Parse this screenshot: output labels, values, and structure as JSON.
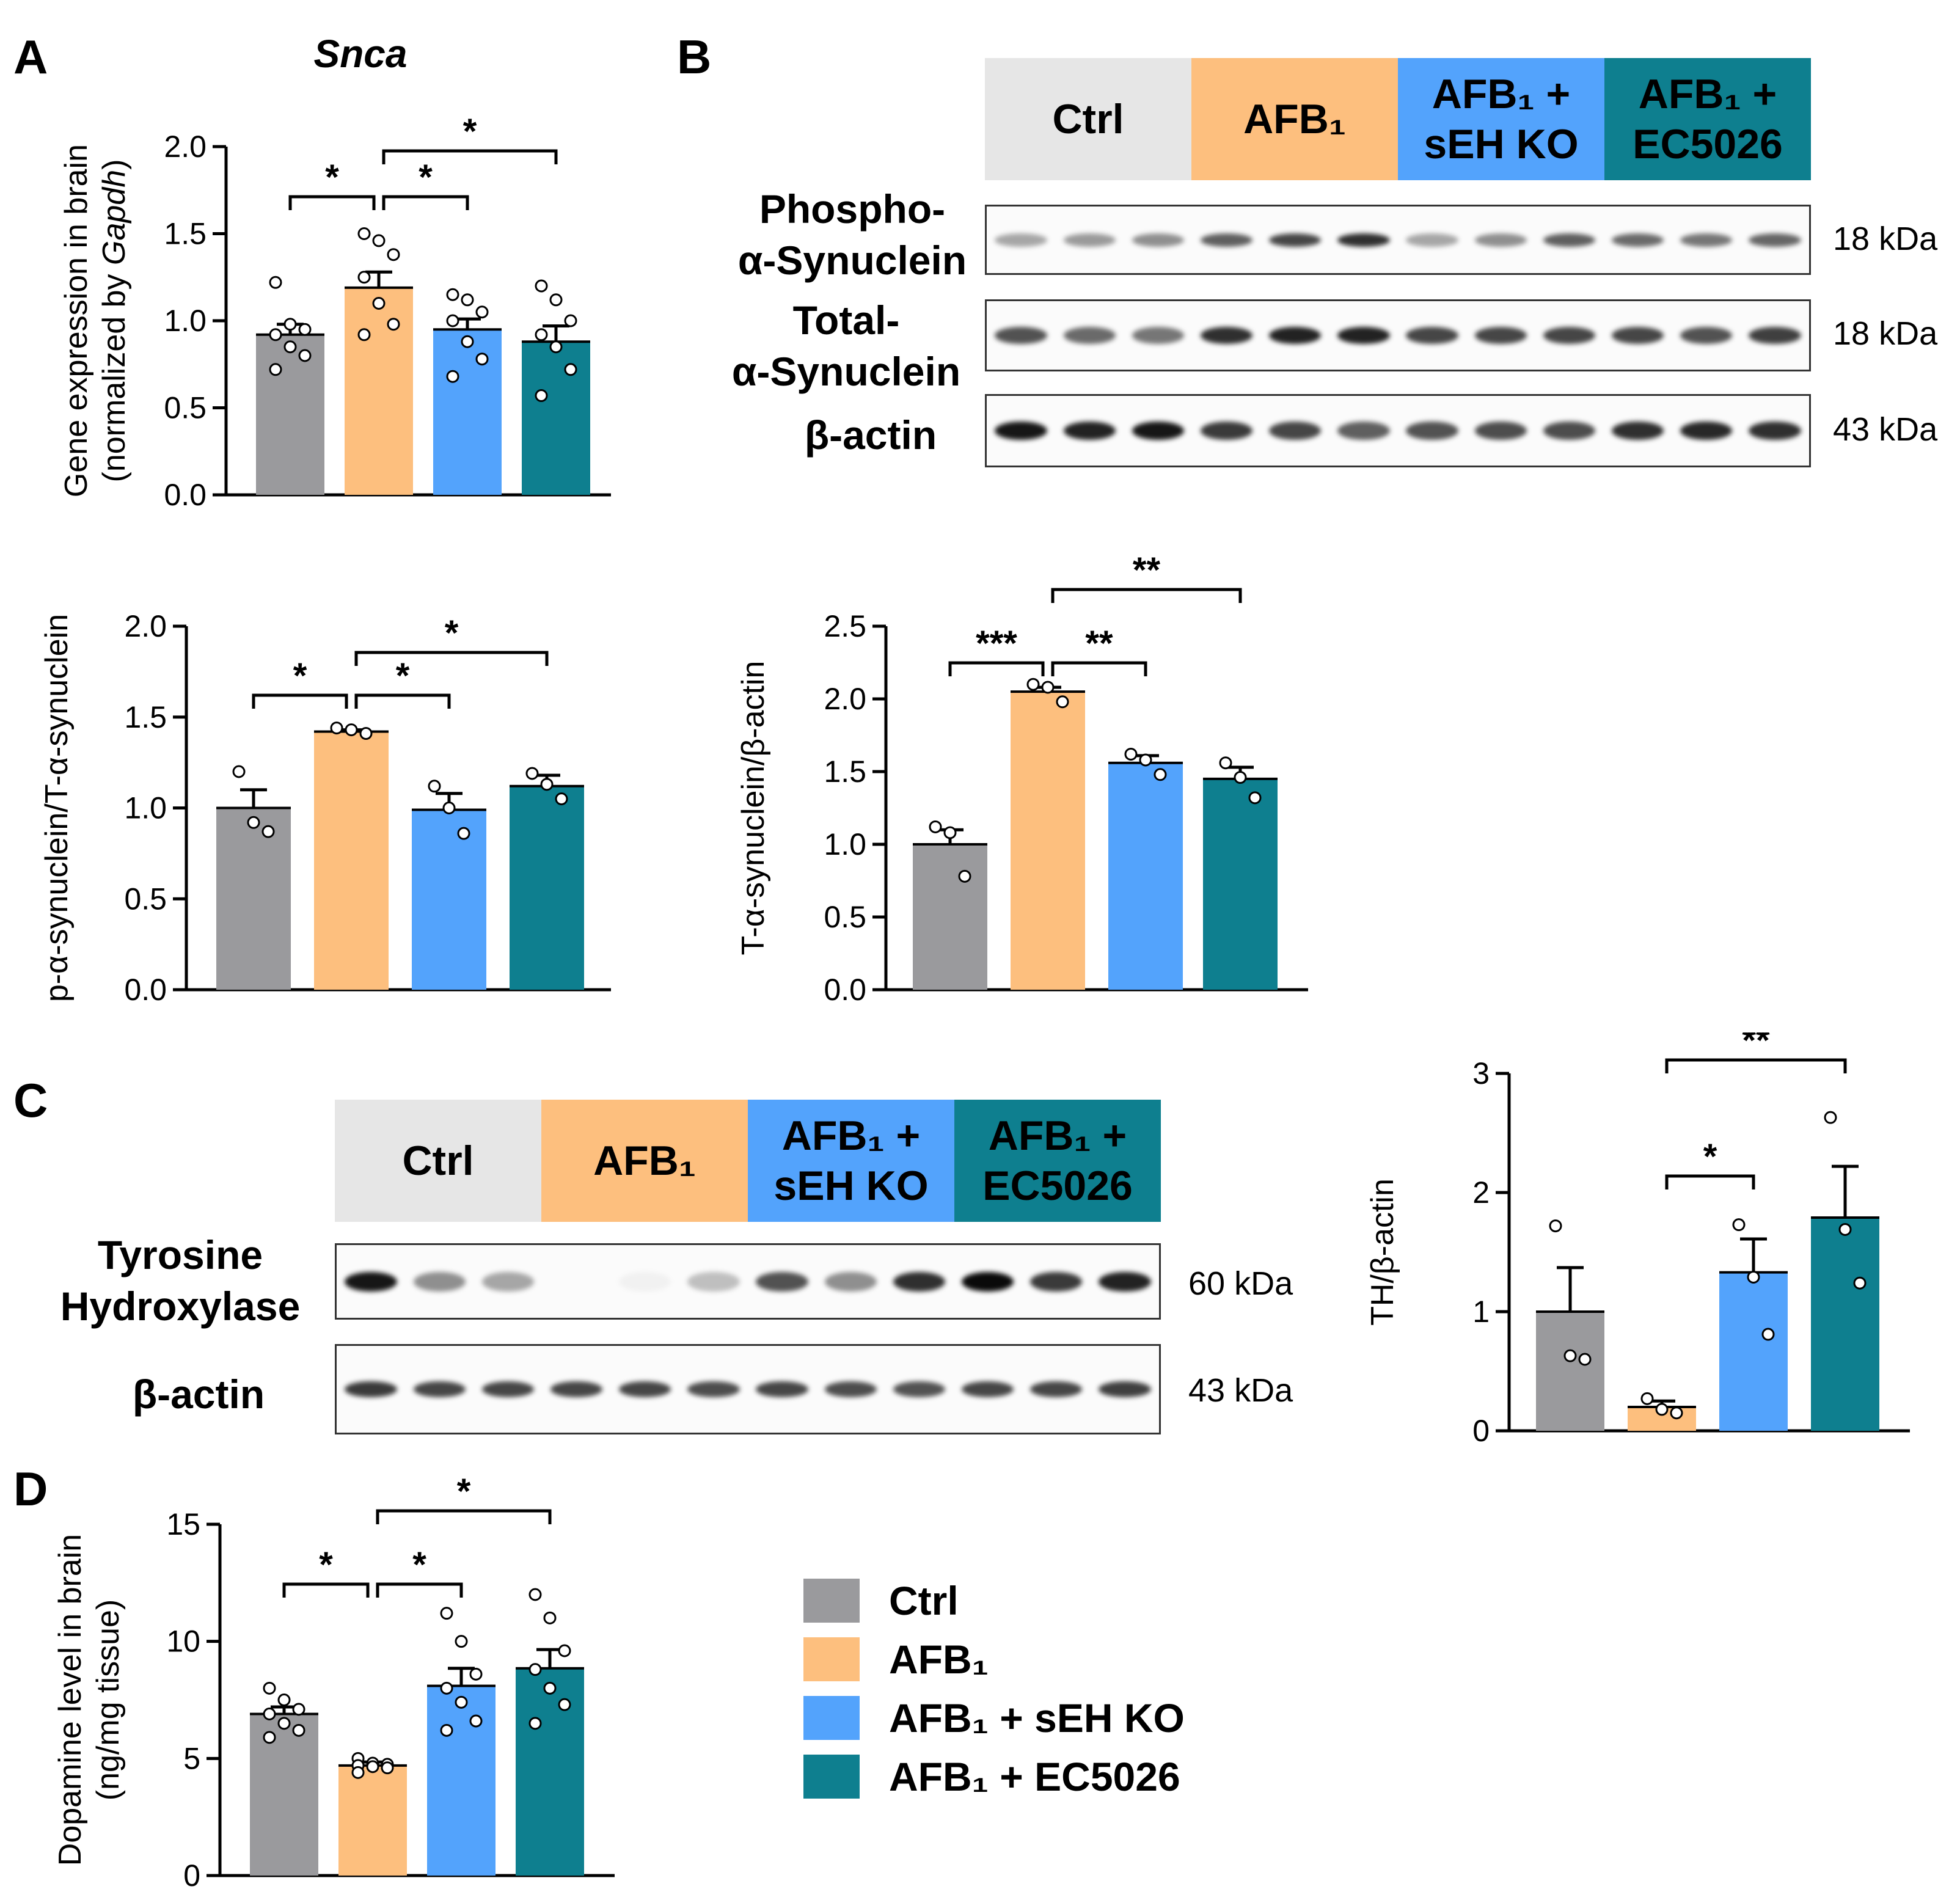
{
  "colors": {
    "ctrl": "#9a9a9d",
    "afb1": "#fdbf7e",
    "seh": "#53a3fc",
    "ec": "#0e7f8f",
    "ctrl_header": "#e6e6e6"
  },
  "groups": [
    "Ctrl",
    "AFB₁",
    "AFB₁ + sEH KO",
    "AFB₁ + EC5026"
  ],
  "headers": {
    "ctrl": "Ctrl",
    "afb1": "AFB₁",
    "seh_line1": "AFB₁ +",
    "seh_line2": "sEH KO",
    "ec_line1": "AFB₁ +",
    "ec_line2": "EC5026"
  },
  "panel_letters": {
    "a": "A",
    "b": "B",
    "c": "C",
    "d": "D"
  },
  "blot_b": {
    "rows": [
      {
        "label_line1": "Phospho-",
        "label_line2": "α-Synuclein",
        "kda": "18 kDa"
      },
      {
        "label_line1": "Total-",
        "label_line2": "α-Synuclein",
        "kda": "18 kDa"
      },
      {
        "label_line1": "β-actin",
        "label_line2": "",
        "kda": "43 kDa"
      }
    ]
  },
  "blot_c": {
    "rows": [
      {
        "label_line1": "Tyrosine",
        "label_line2": "Hydroxylase",
        "kda": "60 kDa"
      },
      {
        "label_line1": "β-actin",
        "label_line2": "",
        "kda": "43 kDa"
      }
    ]
  },
  "legend": [
    {
      "label": "Ctrl"
    },
    {
      "label": "AFB₁"
    },
    {
      "label": "AFB₁ + sEH KO"
    },
    {
      "label": "AFB₁ + EC5026"
    }
  ],
  "chart_data": [
    {
      "id": "snca",
      "type": "bar",
      "title": "Snca",
      "ylabel_line1": "Gene expression in brain",
      "ylabel_line2": "(normalized by Gapdh)",
      "categories": [
        "Ctrl",
        "AFB₁",
        "AFB₁ + sEH KO",
        "AFB₁ + EC5026"
      ],
      "values": [
        0.92,
        1.19,
        0.95,
        0.88
      ],
      "errors": [
        0.06,
        0.09,
        0.06,
        0.09
      ],
      "points": [
        [
          1.22,
          0.98,
          0.95,
          0.92,
          0.85,
          0.8,
          0.72
        ],
        [
          1.5,
          1.46,
          1.38,
          1.25,
          1.1,
          0.98,
          0.92
        ],
        [
          1.15,
          1.12,
          1.05,
          1.0,
          0.88,
          0.78,
          0.68
        ],
        [
          1.2,
          1.12,
          1.0,
          0.92,
          0.85,
          0.72,
          0.57
        ]
      ],
      "ylim": [
        0,
        2.0
      ],
      "yticks": [
        "0.0",
        "0.5",
        "1.0",
        "1.5",
        "2.0"
      ],
      "significance": [
        {
          "from": 0,
          "to": 1,
          "label": "*"
        },
        {
          "from": 1,
          "to": 2,
          "label": "*"
        },
        {
          "from": 1,
          "to": 3,
          "label": "*"
        }
      ]
    },
    {
      "id": "p_ratio",
      "type": "bar",
      "ylabel_line1": "p-α-synuclein/T-α-synuclein",
      "ylabel_line2": "",
      "categories": [
        "Ctrl",
        "AFB₁",
        "AFB₁ + sEH KO",
        "AFB₁ + EC5026"
      ],
      "values": [
        1.0,
        1.42,
        0.99,
        1.12
      ],
      "errors": [
        0.1,
        0.01,
        0.09,
        0.06
      ],
      "points": [
        [
          1.2,
          0.92,
          0.87
        ],
        [
          1.44,
          1.43,
          1.41
        ],
        [
          1.12,
          1.0,
          0.86
        ],
        [
          1.19,
          1.13,
          1.05
        ]
      ],
      "ylim": [
        0,
        2.0
      ],
      "yticks": [
        "0.0",
        "0.5",
        "1.0",
        "1.5",
        "2.0"
      ],
      "significance": [
        {
          "from": 0,
          "to": 1,
          "label": "*"
        },
        {
          "from": 1,
          "to": 2,
          "label": "*"
        },
        {
          "from": 1,
          "to": 3,
          "label": "*"
        }
      ]
    },
    {
      "id": "t_ratio",
      "type": "bar",
      "ylabel_line1": "T-α-synuclein/β-actin",
      "ylabel_line2": "",
      "categories": [
        "Ctrl",
        "AFB₁",
        "AFB₁ + sEH KO",
        "AFB₁ + EC5026"
      ],
      "values": [
        1.0,
        2.05,
        1.56,
        1.45
      ],
      "errors": [
        0.1,
        0.03,
        0.05,
        0.08
      ],
      "points": [
        [
          1.12,
          1.08,
          0.78
        ],
        [
          2.1,
          2.08,
          1.98
        ],
        [
          1.62,
          1.58,
          1.48
        ],
        [
          1.56,
          1.46,
          1.32
        ]
      ],
      "ylim": [
        0,
        2.5
      ],
      "yticks": [
        "0.0",
        "0.5",
        "1.0",
        "1.5",
        "2.0",
        "2.5"
      ],
      "significance": [
        {
          "from": 0,
          "to": 1,
          "label": "***"
        },
        {
          "from": 1,
          "to": 2,
          "label": "**"
        },
        {
          "from": 1,
          "to": 3,
          "label": "**"
        }
      ]
    },
    {
      "id": "th_ratio",
      "type": "bar",
      "ylabel_line1": "TH/β-actin",
      "ylabel_line2": "",
      "categories": [
        "Ctrl",
        "AFB₁",
        "AFB₁ + sEH KO",
        "AFB₁ + EC5026"
      ],
      "values": [
        1.0,
        0.2,
        1.33,
        1.79
      ],
      "errors": [
        0.37,
        0.05,
        0.28,
        0.43
      ],
      "points": [
        [
          1.72,
          0.63,
          0.6
        ],
        [
          0.27,
          0.18,
          0.15
        ],
        [
          1.73,
          1.29,
          0.81
        ],
        [
          2.63,
          1.69,
          1.24
        ]
      ],
      "ylim": [
        0,
        3
      ],
      "yticks": [
        "0",
        "1",
        "2",
        "3"
      ],
      "significance": [
        {
          "from": 1,
          "to": 2,
          "label": "*"
        },
        {
          "from": 1,
          "to": 3,
          "label": "**"
        }
      ]
    },
    {
      "id": "dopamine",
      "type": "bar",
      "ylabel_line1": "Dopamine level in brain",
      "ylabel_line2": "(ng/mg tissue)",
      "categories": [
        "Ctrl",
        "AFB₁",
        "AFB₁ + sEH KO",
        "AFB₁ + EC5026"
      ],
      "values": [
        6.9,
        4.7,
        8.1,
        8.85
      ],
      "errors": [
        0.3,
        0.15,
        0.75,
        0.8
      ],
      "points": [
        [
          8.0,
          7.5,
          7.1,
          6.9,
          6.5,
          6.2,
          5.9
        ],
        [
          5.0,
          4.8,
          4.75,
          4.7,
          4.65,
          4.6,
          4.4
        ],
        [
          11.2,
          10.0,
          8.6,
          8.0,
          7.4,
          6.6,
          6.2
        ],
        [
          12.0,
          11.0,
          9.6,
          8.8,
          8.0,
          7.3,
          6.5
        ]
      ],
      "ylim": [
        0,
        15
      ],
      "yticks": [
        "0",
        "5",
        "10",
        "15"
      ],
      "significance": [
        {
          "from": 0,
          "to": 1,
          "label": "*"
        },
        {
          "from": 1,
          "to": 2,
          "label": "*"
        },
        {
          "from": 1,
          "to": 3,
          "label": "*"
        }
      ]
    }
  ]
}
